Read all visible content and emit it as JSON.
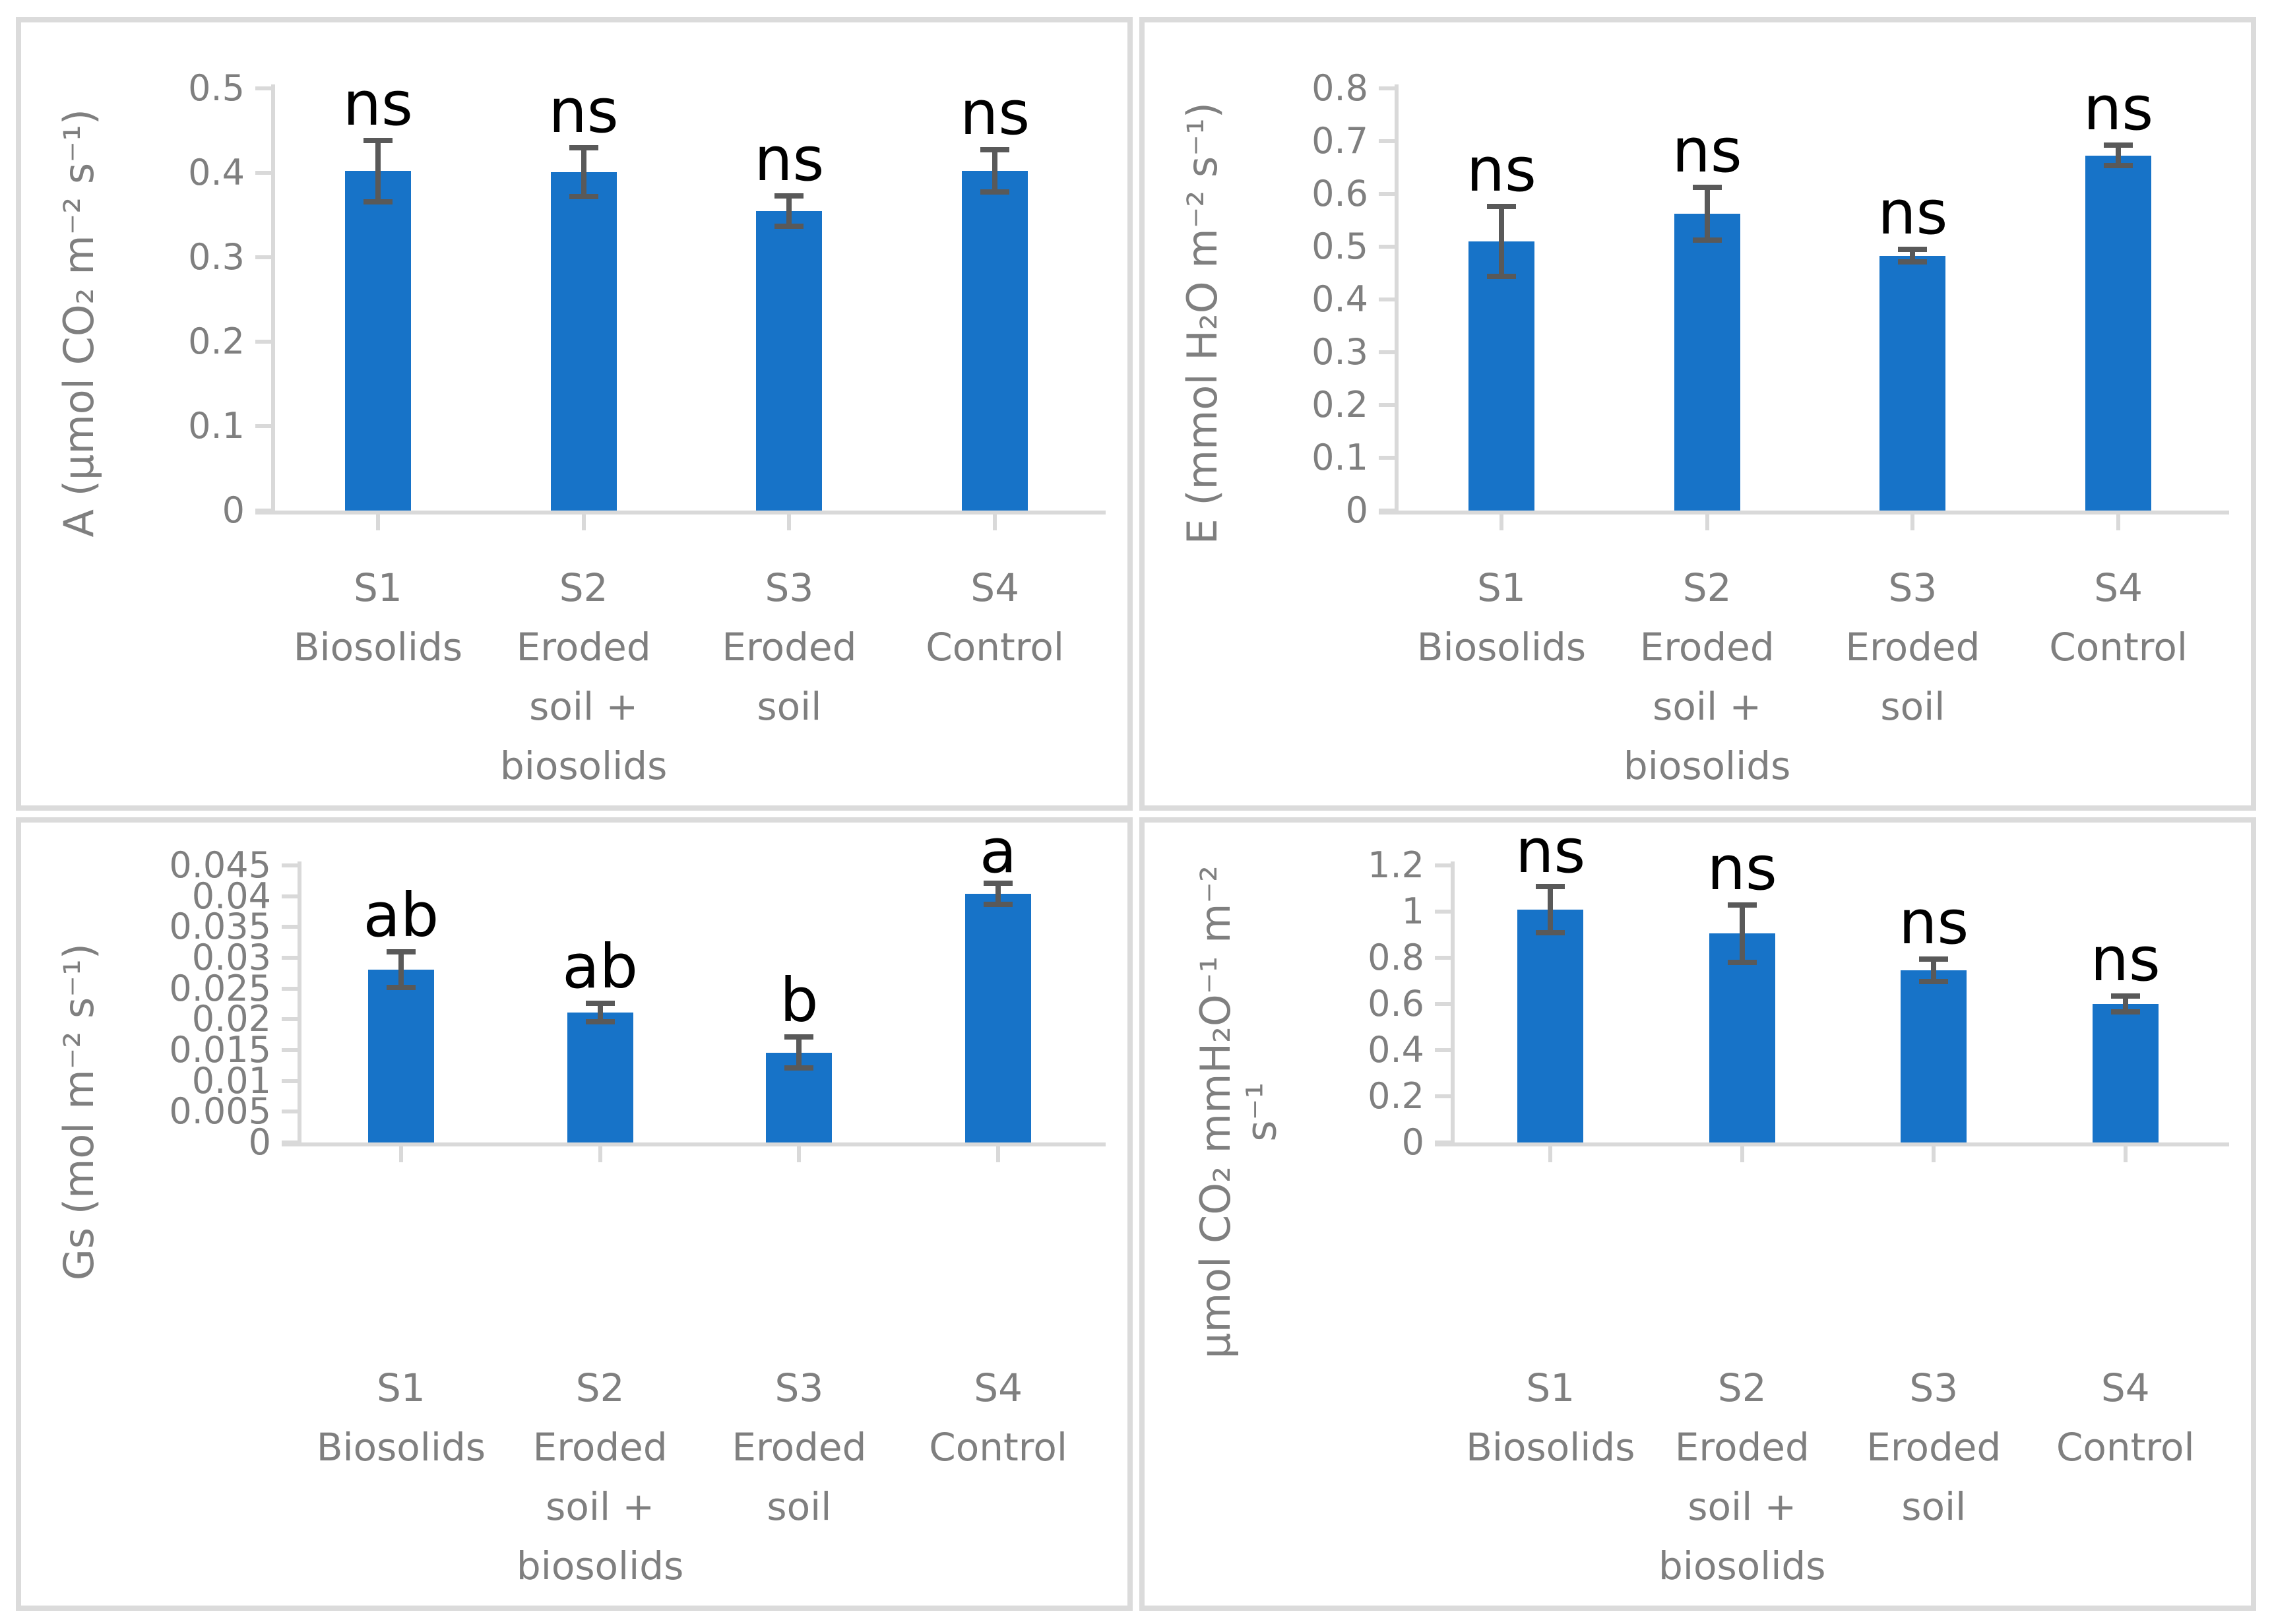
{
  "style": {
    "bar_color": "#1773c8",
    "error_bar_color": "#595959",
    "axis_color": "#d9d9d9",
    "text_color": "#7f7f7f",
    "sig_color": "#000000",
    "panel_border_color": "#dbdbdb",
    "background": "#ffffff"
  },
  "chart_data": [
    {
      "key": "photosynthesis-a",
      "type": "bar",
      "title": "",
      "y_label_lines": [
        "A (µmol CO₂ m⁻² s⁻¹)"
      ],
      "ylabel": "A (µmol CO₂ m⁻² s⁻¹)",
      "xlabel": "",
      "ylim": [
        0,
        0.5
      ],
      "ytick_step": 0.1,
      "yticks": [
        "0.5",
        "0.4",
        "0.3",
        "0.2",
        "0.1",
        "0"
      ],
      "grid": false,
      "legend_position": "none",
      "categories": [
        "S1 Biosolids",
        "S2 Eroded soil + biosolids",
        "S3 Eroded soil",
        "S4 Control"
      ],
      "category_lines": [
        [
          "S1",
          "Biosolids"
        ],
        [
          "S2",
          "Eroded",
          "soil +",
          "biosolids"
        ],
        [
          "S3",
          "Eroded",
          "soil"
        ],
        [
          "S4",
          "Control"
        ]
      ],
      "values": [
        0.402,
        0.401,
        0.355,
        0.402
      ],
      "errors": [
        0.036,
        0.029,
        0.018,
        0.025
      ],
      "sig_labels": [
        "ns",
        "ns",
        "ns",
        "ns"
      ]
    },
    {
      "key": "transpiration-e",
      "type": "bar",
      "title": "",
      "y_label_lines": [
        "E (mmol H₂O m⁻² s⁻¹)"
      ],
      "ylabel": "E (mmol H₂O m⁻² s⁻¹)",
      "xlabel": "",
      "ylim": [
        0,
        0.8
      ],
      "ytick_step": 0.1,
      "yticks": [
        "0.8",
        "0.7",
        "0.6",
        "0.5",
        "0.4",
        "0.3",
        "0.2",
        "0.1",
        "0"
      ],
      "grid": false,
      "legend_position": "none",
      "categories": [
        "S1 Biosolids",
        "S2 Eroded soil + biosolids",
        "S3 Eroded soil",
        "S4 Control"
      ],
      "category_lines": [
        [
          "S1",
          "Biosolids"
        ],
        [
          "S2",
          "Eroded",
          "soil +",
          "biosolids"
        ],
        [
          "S3",
          "Eroded",
          "soil"
        ],
        [
          "S4",
          "Control"
        ]
      ],
      "values": [
        0.51,
        0.562,
        0.483,
        0.673
      ],
      "errors": [
        0.066,
        0.05,
        0.012,
        0.019
      ],
      "sig_labels": [
        "ns",
        "ns",
        "ns",
        "ns"
      ]
    },
    {
      "key": "stomatal-conductance-gs",
      "type": "bar",
      "title": "",
      "y_label_lines": [
        "Gs (mol m⁻² s⁻¹)"
      ],
      "ylabel": "Gs (mol m⁻² s⁻¹)",
      "xlabel": "",
      "ylim": [
        0,
        0.045
      ],
      "ytick_step": 0.005,
      "yticks": [
        "0.045",
        "0.04",
        "0.035",
        "0.03",
        "0.025",
        "0.02",
        "0.015",
        "0.01",
        "0.005",
        "0"
      ],
      "grid": false,
      "legend_position": "none",
      "categories": [
        "S1 Biosolids",
        "S2 Eroded soil + biosolids",
        "S3 Eroded soil",
        "S4 Control"
      ],
      "category_lines": [
        [
          "S1",
          "Biosolids"
        ],
        [
          "S2",
          "Eroded",
          "soil +",
          "biosolids"
        ],
        [
          "S3",
          "Eroded",
          "soil"
        ],
        [
          "S4",
          "Control"
        ]
      ],
      "values": [
        0.0281,
        0.0211,
        0.0146,
        0.0404
      ],
      "errors": [
        0.0029,
        0.0015,
        0.0025,
        0.0017
      ],
      "sig_labels": [
        "ab",
        "ab",
        "b",
        "a"
      ]
    },
    {
      "key": "water-use-efficiency",
      "type": "bar",
      "title": "",
      "y_label_lines": [
        "µmol CO₂ mmH₂O⁻¹ m⁻²",
        "s⁻¹"
      ],
      "ylabel": "µmol CO₂ mmH₂O⁻¹ m⁻² s⁻¹",
      "xlabel": "",
      "ylim": [
        0,
        1.2
      ],
      "ytick_step": 0.2,
      "yticks": [
        "1.2",
        "1",
        "0.8",
        "0.6",
        "0.4",
        "0.2",
        "0"
      ],
      "grid": false,
      "legend_position": "none",
      "categories": [
        "S1 Biosolids",
        "S2 Eroded soil + biosolids",
        "S3 Eroded soil",
        "S4 Control"
      ],
      "category_lines": [
        [
          "S1",
          "Biosolids"
        ],
        [
          "S2",
          "Eroded",
          "soil +",
          "biosolids"
        ],
        [
          "S3",
          "Eroded",
          "soil"
        ],
        [
          "S4",
          "Control"
        ]
      ],
      "values": [
        1.01,
        0.905,
        0.745,
        0.6
      ],
      "errors": [
        0.1,
        0.125,
        0.048,
        0.035
      ],
      "sig_labels": [
        "ns",
        "ns",
        "ns",
        "ns"
      ]
    }
  ]
}
